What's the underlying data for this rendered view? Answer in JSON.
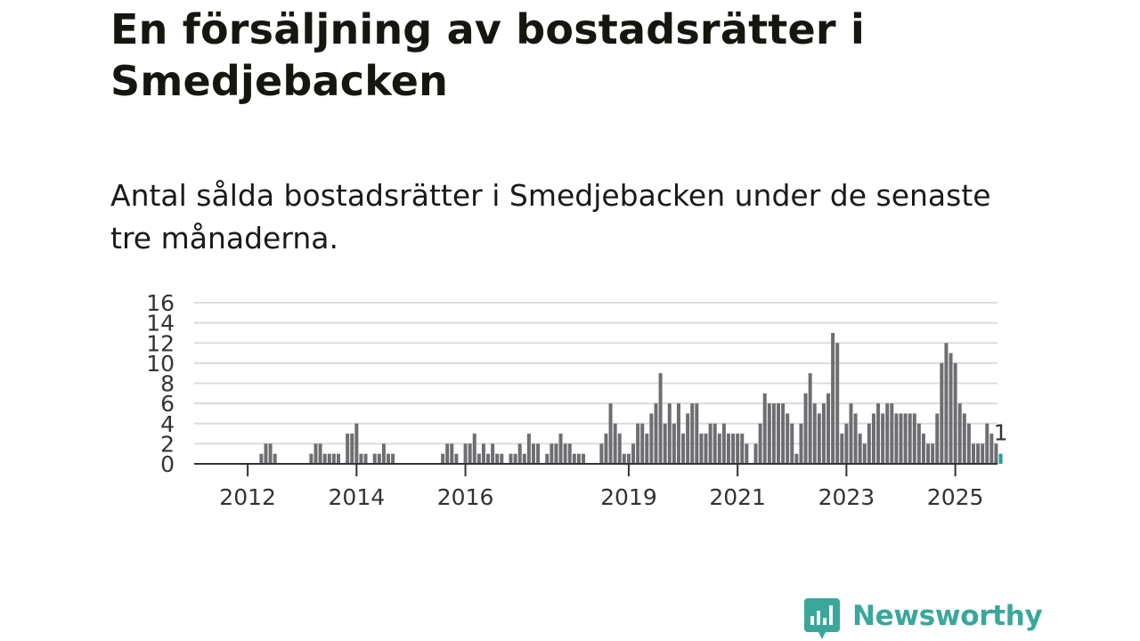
{
  "colors": {
    "bar": "#6e6d72",
    "highlight": "#1aa19a",
    "grid": "#dcdcdc",
    "axis": "#333333",
    "brand": "#3aa79b"
  },
  "header": {
    "title": "En försäljning av bostadsrätter i Smedjebacken",
    "subtitle": "Antal sålda bostadsrätter i Smedjebacken under de senaste tre månaderna."
  },
  "brand": {
    "name": "Newsworthy",
    "logo_icon": "newsworthy-chart-bubble-icon"
  },
  "chart_data": {
    "type": "bar",
    "title": "",
    "xlabel": "",
    "ylabel": "",
    "ylim": [
      0,
      16
    ],
    "yticks": [
      "0",
      "2",
      "4",
      "6",
      "8",
      "10",
      "12",
      "14",
      "16"
    ],
    "grid": true,
    "legend": "none",
    "x_start": "2011-01",
    "xticks": [
      {
        "label": "2012",
        "date": "2012-01"
      },
      {
        "label": "2014",
        "date": "2014-01"
      },
      {
        "label": "2016",
        "date": "2016-01"
      },
      {
        "label": "2019",
        "date": "2019-01"
      },
      {
        "label": "2021",
        "date": "2021-01"
      },
      {
        "label": "2023",
        "date": "2023-01"
      },
      {
        "label": "2025",
        "date": "2025-01"
      }
    ],
    "series": [
      {
        "data": [
          [
            "2012-04",
            1
          ],
          [
            "2012-05",
            2
          ],
          [
            "2012-06",
            2
          ],
          [
            "2012-07",
            1
          ],
          [
            "2013-03",
            1
          ],
          [
            "2013-04",
            2
          ],
          [
            "2013-05",
            2
          ],
          [
            "2013-06",
            1
          ],
          [
            "2013-07",
            1
          ],
          [
            "2013-08",
            1
          ],
          [
            "2013-09",
            1
          ],
          [
            "2013-11",
            3
          ],
          [
            "2013-12",
            3
          ],
          [
            "2014-01",
            4
          ],
          [
            "2014-02",
            1
          ],
          [
            "2014-03",
            1
          ],
          [
            "2014-05",
            1
          ],
          [
            "2014-06",
            1
          ],
          [
            "2014-07",
            2
          ],
          [
            "2014-08",
            1
          ],
          [
            "2014-09",
            1
          ],
          [
            "2015-08",
            1
          ],
          [
            "2015-09",
            2
          ],
          [
            "2015-10",
            2
          ],
          [
            "2015-11",
            1
          ],
          [
            "2016-01",
            2
          ],
          [
            "2016-02",
            2
          ],
          [
            "2016-03",
            3
          ],
          [
            "2016-04",
            1
          ],
          [
            "2016-05",
            2
          ],
          [
            "2016-06",
            1
          ],
          [
            "2016-07",
            2
          ],
          [
            "2016-08",
            1
          ],
          [
            "2016-09",
            1
          ],
          [
            "2016-11",
            1
          ],
          [
            "2016-12",
            1
          ],
          [
            "2017-01",
            2
          ],
          [
            "2017-02",
            1
          ],
          [
            "2017-03",
            3
          ],
          [
            "2017-04",
            2
          ],
          [
            "2017-05",
            2
          ],
          [
            "2017-07",
            1
          ],
          [
            "2017-08",
            2
          ],
          [
            "2017-09",
            2
          ],
          [
            "2017-10",
            3
          ],
          [
            "2017-11",
            2
          ],
          [
            "2017-12",
            2
          ],
          [
            "2018-01",
            1
          ],
          [
            "2018-02",
            1
          ],
          [
            "2018-03",
            1
          ],
          [
            "2018-07",
            2
          ],
          [
            "2018-08",
            3
          ],
          [
            "2018-09",
            6
          ],
          [
            "2018-10",
            4
          ],
          [
            "2018-11",
            3
          ],
          [
            "2018-12",
            1
          ],
          [
            "2019-01",
            1
          ],
          [
            "2019-02",
            2
          ],
          [
            "2019-03",
            4
          ],
          [
            "2019-04",
            4
          ],
          [
            "2019-05",
            3
          ],
          [
            "2019-06",
            5
          ],
          [
            "2019-07",
            6
          ],
          [
            "2019-08",
            9
          ],
          [
            "2019-09",
            4
          ],
          [
            "2019-10",
            6
          ],
          [
            "2019-11",
            4
          ],
          [
            "2019-12",
            6
          ],
          [
            "2020-01",
            3
          ],
          [
            "2020-02",
            5
          ],
          [
            "2020-03",
            6
          ],
          [
            "2020-04",
            6
          ],
          [
            "2020-05",
            3
          ],
          [
            "2020-06",
            3
          ],
          [
            "2020-07",
            4
          ],
          [
            "2020-08",
            4
          ],
          [
            "2020-09",
            3
          ],
          [
            "2020-10",
            4
          ],
          [
            "2020-11",
            3
          ],
          [
            "2020-12",
            3
          ],
          [
            "2021-01",
            3
          ],
          [
            "2021-02",
            3
          ],
          [
            "2021-03",
            2
          ],
          [
            "2021-05",
            2
          ],
          [
            "2021-06",
            4
          ],
          [
            "2021-07",
            7
          ],
          [
            "2021-08",
            6
          ],
          [
            "2021-09",
            6
          ],
          [
            "2021-10",
            6
          ],
          [
            "2021-11",
            6
          ],
          [
            "2021-12",
            5
          ],
          [
            "2022-01",
            4
          ],
          [
            "2022-02",
            1
          ],
          [
            "2022-03",
            4
          ],
          [
            "2022-04",
            7
          ],
          [
            "2022-05",
            9
          ],
          [
            "2022-06",
            6
          ],
          [
            "2022-07",
            5
          ],
          [
            "2022-08",
            6
          ],
          [
            "2022-09",
            7
          ],
          [
            "2022-10",
            13
          ],
          [
            "2022-11",
            12
          ],
          [
            "2022-12",
            3
          ],
          [
            "2023-01",
            4
          ],
          [
            "2023-02",
            6
          ],
          [
            "2023-03",
            5
          ],
          [
            "2023-04",
            3
          ],
          [
            "2023-05",
            2
          ],
          [
            "2023-06",
            4
          ],
          [
            "2023-07",
            5
          ],
          [
            "2023-08",
            6
          ],
          [
            "2023-09",
            5
          ],
          [
            "2023-10",
            6
          ],
          [
            "2023-11",
            6
          ],
          [
            "2023-12",
            5
          ],
          [
            "2024-01",
            5
          ],
          [
            "2024-02",
            5
          ],
          [
            "2024-03",
            5
          ],
          [
            "2024-04",
            5
          ],
          [
            "2024-05",
            4
          ],
          [
            "2024-06",
            3
          ],
          [
            "2024-07",
            2
          ],
          [
            "2024-08",
            2
          ],
          [
            "2024-09",
            5
          ],
          [
            "2024-10",
            10
          ],
          [
            "2024-11",
            12
          ],
          [
            "2024-12",
            11
          ],
          [
            "2025-01",
            10
          ],
          [
            "2025-02",
            6
          ],
          [
            "2025-03",
            5
          ],
          [
            "2025-04",
            4
          ],
          [
            "2025-05",
            2
          ],
          [
            "2025-06",
            2
          ],
          [
            "2025-07",
            2
          ],
          [
            "2025-08",
            4
          ],
          [
            "2025-09",
            3
          ],
          [
            "2025-10",
            2
          ],
          [
            "2025-11",
            1
          ]
        ]
      }
    ],
    "highlight": {
      "date": "2025-11",
      "value": 1,
      "label": "1"
    }
  }
}
